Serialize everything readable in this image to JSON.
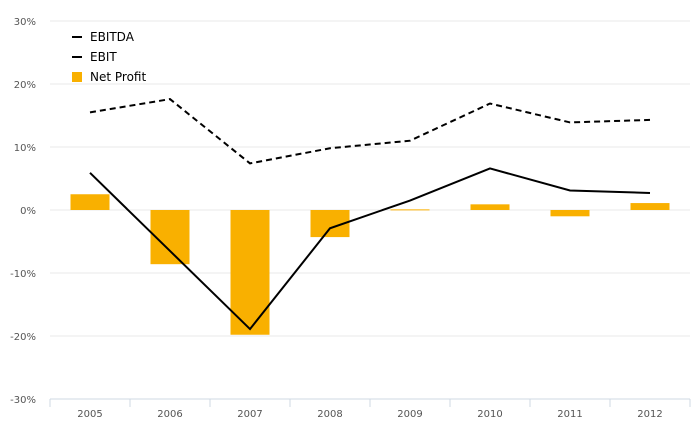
{
  "chart_data": {
    "type": "bar",
    "categories": [
      "2005",
      "2006",
      "2007",
      "2008",
      "2009",
      "2010",
      "2011",
      "2012"
    ],
    "ylim": [
      -30,
      30
    ],
    "yticks": [
      -30,
      -20,
      -10,
      0,
      10,
      20,
      30
    ],
    "ytick_labels": [
      "-30%",
      "-20%",
      "-10%",
      "0%",
      "10%",
      "20%",
      "30%"
    ],
    "grid": true,
    "legend_position": "top-left",
    "series": [
      {
        "name": "EBITDA",
        "type": "line",
        "style": "dashed",
        "color": "#000000",
        "values": [
          15.5,
          17.6,
          7.4,
          9.8,
          11.0,
          16.9,
          13.9,
          14.3
        ]
      },
      {
        "name": "EBIT",
        "type": "line",
        "style": "solid",
        "color": "#000000",
        "values": [
          5.9,
          -6.5,
          -18.9,
          -2.9,
          1.5,
          6.6,
          3.1,
          2.7
        ]
      },
      {
        "name": "Net Profit",
        "type": "bar",
        "color": "#F9B000",
        "values": [
          2.5,
          -8.6,
          -19.8,
          -4.3,
          0.1,
          0.9,
          -1.0,
          1.1
        ]
      }
    ]
  }
}
